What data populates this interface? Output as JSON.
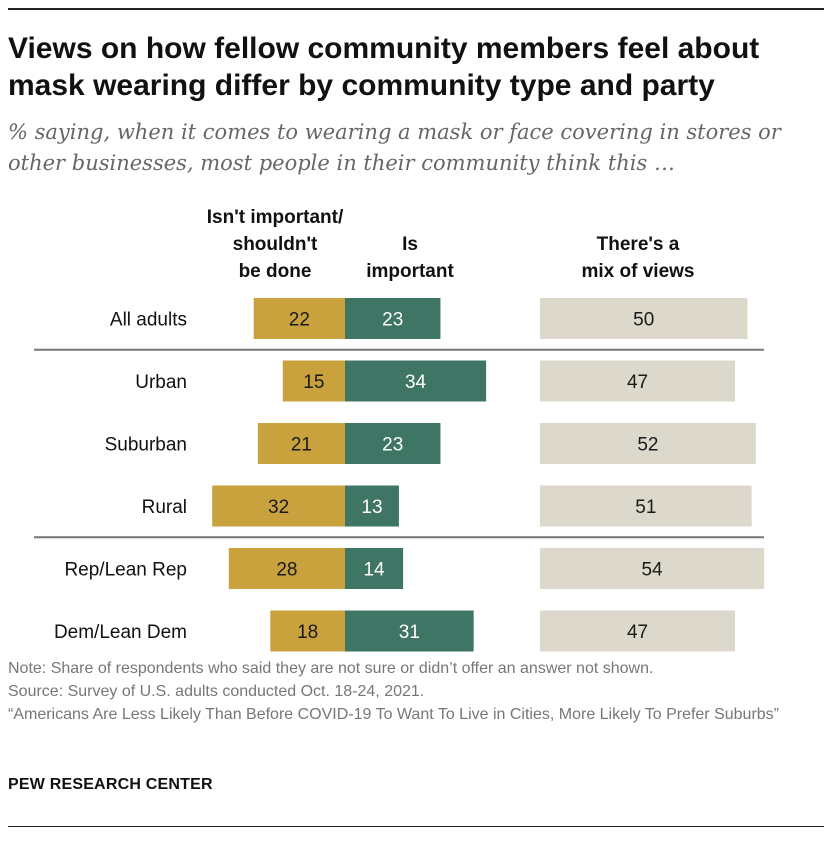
{
  "title": "Views on how fellow community members feel about mask wearing differ by community type and party",
  "subtitle": "% saying, when it comes to wearing a mask or face covering in stores or other businesses, most people in their community think this …",
  "notes": {
    "note": "Note: Share of respondents who said they are not sure or didn’t offer an answer not shown.",
    "source": "Source: Survey of U.S. adults conducted Oct. 18-24, 2021.",
    "report": "“Americans Are Less Likely Than Before COVID-19 To Want To Live in Cities, More Likely To Prefer Suburbs”"
  },
  "org": "PEW RESEARCH CENTER",
  "colors": {
    "not_important": "#C9A23E",
    "important": "#3F7565",
    "mix": "#DCD8CB",
    "label_dark": "#1a1a1a",
    "label_light": "#ffffff"
  },
  "chart_data": {
    "type": "bar",
    "orientation": "horizontal-diverging",
    "categories": [
      "All adults",
      "Urban",
      "Suburban",
      "Rural",
      "Rep/Lean Rep",
      "Dem/Lean Dem"
    ],
    "group_separators_after": [
      "All adults",
      "Rural"
    ],
    "series": [
      {
        "name": "Isn't important/ shouldn't be done",
        "values": [
          22,
          15,
          21,
          32,
          28,
          18
        ]
      },
      {
        "name": "Is important",
        "values": [
          23,
          34,
          23,
          13,
          14,
          31
        ]
      },
      {
        "name": "There's a mix of views",
        "values": [
          50,
          47,
          52,
          51,
          54,
          47
        ]
      }
    ],
    "column_headers": [
      [
        "Isn't important/",
        "shouldn't",
        "be done"
      ],
      [
        "Is",
        "important"
      ],
      [
        "There's a",
        "mix of views"
      ]
    ]
  }
}
